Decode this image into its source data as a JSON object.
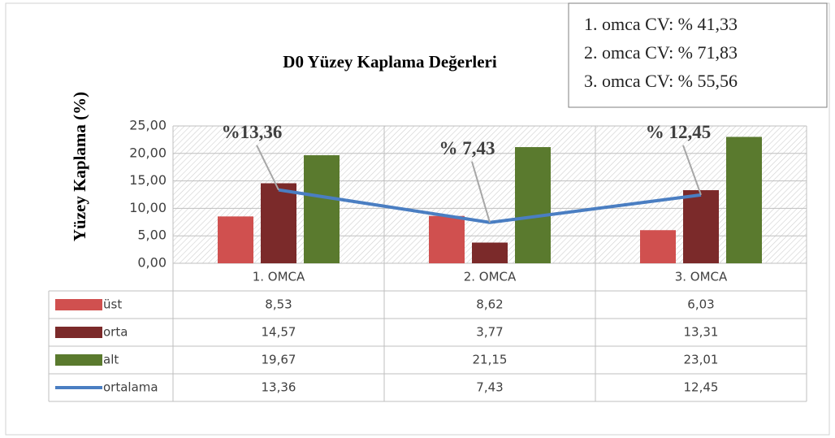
{
  "chart_data": {
    "type": "bar",
    "title": "D0  Yüzey Kaplama Değerleri",
    "y_label": "Yüzey Kaplama (%)",
    "categories": [
      "1. OMCA",
      "2. OMCA",
      "3. OMCA"
    ],
    "series": [
      {
        "name": "üst",
        "color": "#d0504f",
        "values": [
          8.53,
          8.62,
          6.03
        ],
        "value_labels": [
          "8,53",
          "8,62",
          "6,03"
        ]
      },
      {
        "name": "orta",
        "color": "#7b2a2a",
        "values": [
          14.57,
          3.77,
          13.31
        ],
        "value_labels": [
          "14,57",
          "3,77",
          "13,31"
        ]
      },
      {
        "name": "alt",
        "color": "#5a7a2e",
        "values": [
          19.67,
          21.15,
          23.01
        ],
        "value_labels": [
          "19,67",
          "21,15",
          "23,01"
        ]
      },
      {
        "name": "ortalama",
        "type": "line",
        "color": "#4a7ec2",
        "values": [
          13.36,
          7.43,
          12.45
        ],
        "value_labels": [
          "13,36",
          "7,43",
          "12,45"
        ],
        "callout_labels": [
          "%13,36",
          "% 7,43",
          "% 12,45"
        ]
      }
    ],
    "ylim": [
      0,
      25
    ],
    "yticks": [
      {
        "value": 0,
        "label": "0,00"
      },
      {
        "value": 5,
        "label": "5,00"
      },
      {
        "value": 10,
        "label": "10,00"
      },
      {
        "value": 15,
        "label": "15,00"
      },
      {
        "value": 20,
        "label": "20,00"
      },
      {
        "value": 25,
        "label": "25,00"
      }
    ],
    "grid": true,
    "cv_box": [
      "1. omca CV: % 41,33",
      "2. omca CV: % 71,83",
      "3. omca CV: % 55,56"
    ]
  }
}
